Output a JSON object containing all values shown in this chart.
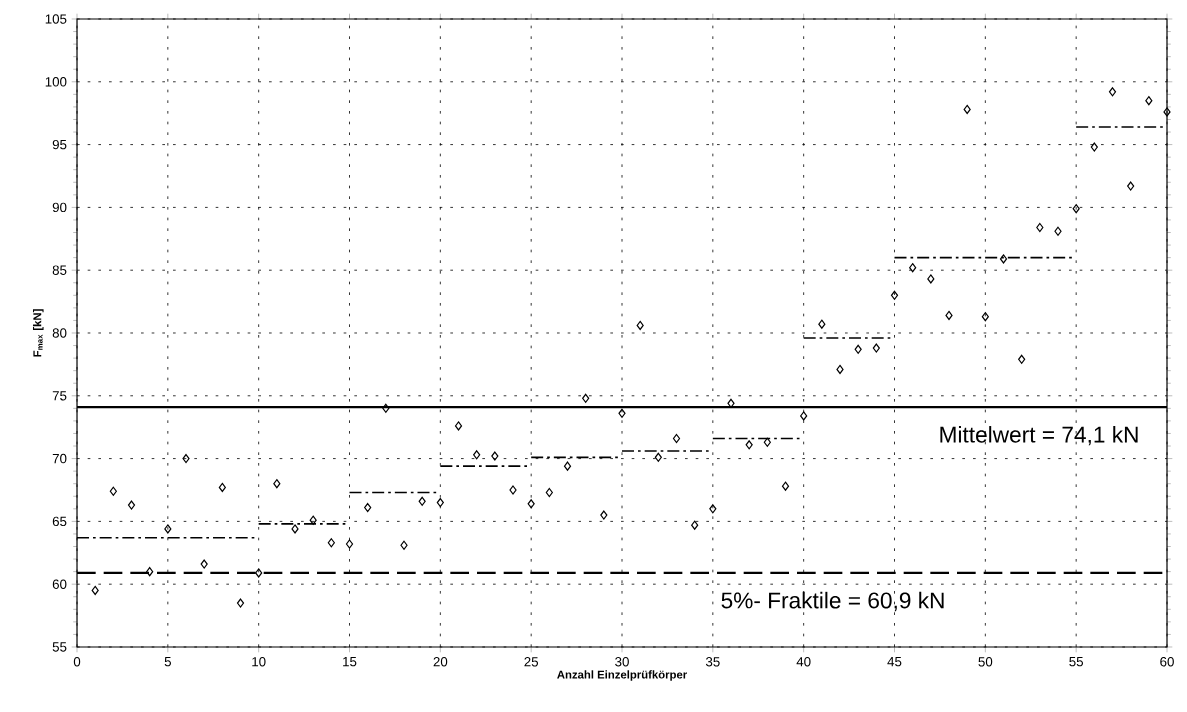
{
  "chart_data": {
    "type": "scatter",
    "xlabel": "Anzahl Einzelprüfkörper",
    "ylabel": "F$_{max}$ [kN]",
    "xlim": [
      0,
      60
    ],
    "xticks": [
      0,
      5,
      10,
      15,
      20,
      25,
      30,
      35,
      40,
      45,
      50,
      55,
      60
    ],
    "ylim": [
      55,
      105
    ],
    "yticks": [
      55,
      60,
      65,
      70,
      75,
      80,
      85,
      90,
      95,
      100,
      105
    ],
    "grid": true,
    "marker": "diamond",
    "series": [
      {
        "color": "#000000",
        "x": [
          1,
          2,
          3,
          4,
          5,
          6,
          7,
          8,
          9,
          10,
          11,
          12,
          13,
          14,
          15,
          16,
          17,
          18,
          19,
          20,
          21,
          22,
          23,
          24,
          25,
          26,
          27,
          28,
          29,
          30,
          31,
          32,
          33,
          34,
          35,
          36,
          37,
          38,
          39,
          40,
          41,
          42,
          43,
          44,
          45,
          46,
          47,
          48,
          49,
          50,
          51,
          52,
          53,
          54,
          55,
          56,
          57,
          58,
          59,
          60
        ],
        "values": [
          59.5,
          67.4,
          66.3,
          61.0,
          64.4,
          70.0,
          61.6,
          67.7,
          58.5,
          60.9,
          68.0,
          64.4,
          65.1,
          63.3,
          63.2,
          66.1,
          74.0,
          63.1,
          66.6,
          66.5,
          72.6,
          70.3,
          70.2,
          67.5,
          66.4,
          67.3,
          69.4,
          74.8,
          65.5,
          73.6,
          80.6,
          70.1,
          71.6,
          64.7,
          66.0,
          74.4,
          71.1,
          71.3,
          67.8,
          73.4,
          80.7,
          77.1,
          78.7,
          78.8,
          83.0,
          85.2,
          84.3,
          81.4,
          97.8,
          81.3,
          85.9,
          77.9,
          88.4,
          88.1,
          89.9,
          94.8,
          99.2,
          91.7,
          98.5,
          97.6
        ]
      },
      {
        "type": "line",
        "color": "#000000",
        "line_style": "dashed",
        "marker": "none",
        "x": [
          0,
          9.8,
          null,
          10,
          14.8,
          null,
          15,
          19.8,
          null,
          20,
          24.8,
          null,
          25,
          29.8,
          null,
          30,
          34.8,
          null,
          35,
          39.8,
          null,
          40,
          44.8,
          null,
          45,
          54.8,
          null,
          55,
          59.8
        ],
        "values": [
          63.7,
          63.7,
          null,
          64.8,
          64.8,
          null,
          67.3,
          67.3,
          null,
          69.4,
          69.4,
          null,
          70.1,
          70.1,
          null,
          70.6,
          70.6,
          null,
          71.6,
          71.6,
          null,
          79.6,
          79.6,
          null,
          86.0,
          86.0,
          null,
          96.4,
          96.4
        ]
      }
    ],
    "ref_lines": [
      {
        "axis": "y",
        "value": 74.1,
        "label": "Mittelwert = 74,1 kN",
        "line_style": "solid"
      },
      {
        "axis": "y",
        "value": 60.9,
        "label": "5%- Fraktile = 60,9 kN",
        "line_style": "dashed"
      }
    ]
  }
}
